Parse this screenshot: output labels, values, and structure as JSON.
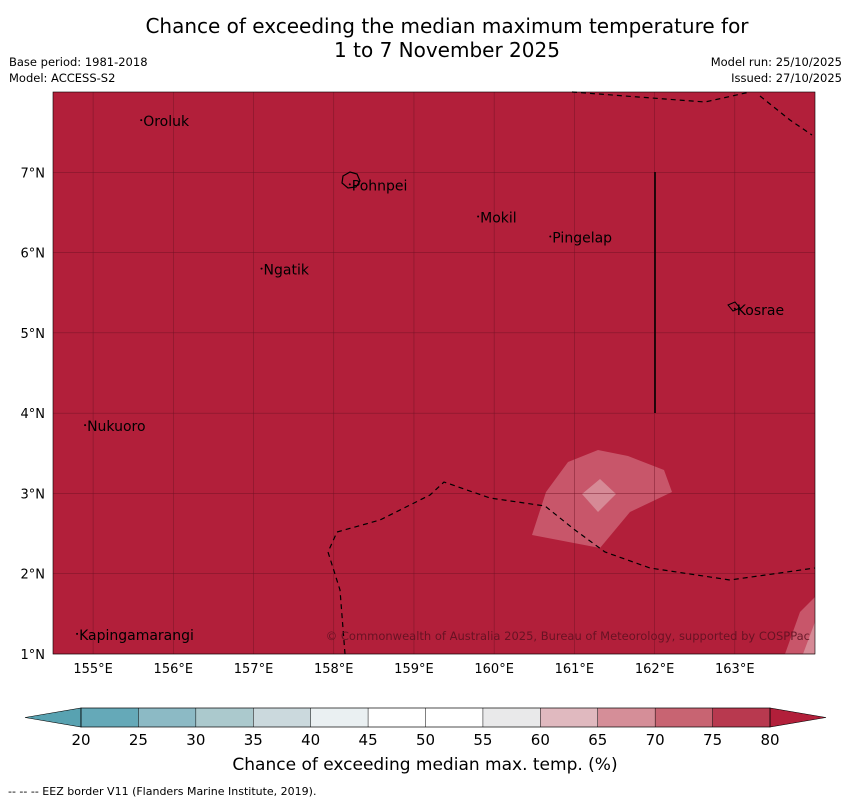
{
  "title_line1": "Chance of exceeding the median maximum temperature for",
  "title_line2": "1 to 7 November 2025",
  "meta_left": [
    "Base period: 1981-2018",
    "Model: ACCESS-S2"
  ],
  "meta_right": [
    "Model run: 25/10/2025",
    "Issued: 27/10/2025"
  ],
  "map": {
    "lon_range": [
      154.5,
      164.0
    ],
    "lat_range": [
      1.0,
      8.0
    ],
    "lon_ticks": [
      155,
      156,
      157,
      158,
      159,
      160,
      161,
      162,
      163
    ],
    "lon_tick_labels": [
      "155°E",
      "156°E",
      "157°E",
      "158°E",
      "159°E",
      "160°E",
      "161°E",
      "162°E",
      "163°E"
    ],
    "lat_ticks": [
      1,
      2,
      3,
      4,
      5,
      6,
      7
    ],
    "lat_tick_labels": [
      "1°N",
      "2°N",
      "3°N",
      "4°N",
      "5°N",
      "6°N",
      "7°N"
    ],
    "places": [
      {
        "name": "Oroluk",
        "lon": 155.6,
        "lat": 7.65
      },
      {
        "name": "Pohnpei",
        "lon": 158.2,
        "lat": 6.85
      },
      {
        "name": "Mokil",
        "lon": 159.8,
        "lat": 6.45
      },
      {
        "name": "Pingelap",
        "lon": 160.7,
        "lat": 6.2
      },
      {
        "name": "Ngatik",
        "lon": 157.1,
        "lat": 5.8
      },
      {
        "name": "Kosrae",
        "lon": 163.0,
        "lat": 5.3
      },
      {
        "name": "Nukuoro",
        "lon": 154.9,
        "lat": 3.85
      },
      {
        "name": "Kapingamarangi",
        "lon": 154.8,
        "lat": 1.25
      }
    ],
    "base_color": "#b21f3a",
    "credit": "© Commonwealth of Australia 2025, Bureau of Meteorology, supported by COSPPac"
  },
  "colorbar": {
    "ticks": [
      "20",
      "25",
      "30",
      "35",
      "40",
      "45",
      "50",
      "55",
      "60",
      "65",
      "70",
      "75",
      "80"
    ],
    "colors": [
      "#65a9b8",
      "#8cbac5",
      "#abc9cd",
      "#cbd9dd",
      "#eaf0f2",
      "#ffffff",
      "#ffffff",
      "#e9e9ea",
      "#e0b9bf",
      "#d58e98",
      "#c86472",
      "#b8394f"
    ],
    "under_color": "#58a2b1",
    "over_color": "#b21f3a",
    "label": "Chance of exceeding median max. temp. (%)"
  },
  "footer": "--  --  -- EEZ border V11 (Flanders Marine Institute, 2019)."
}
